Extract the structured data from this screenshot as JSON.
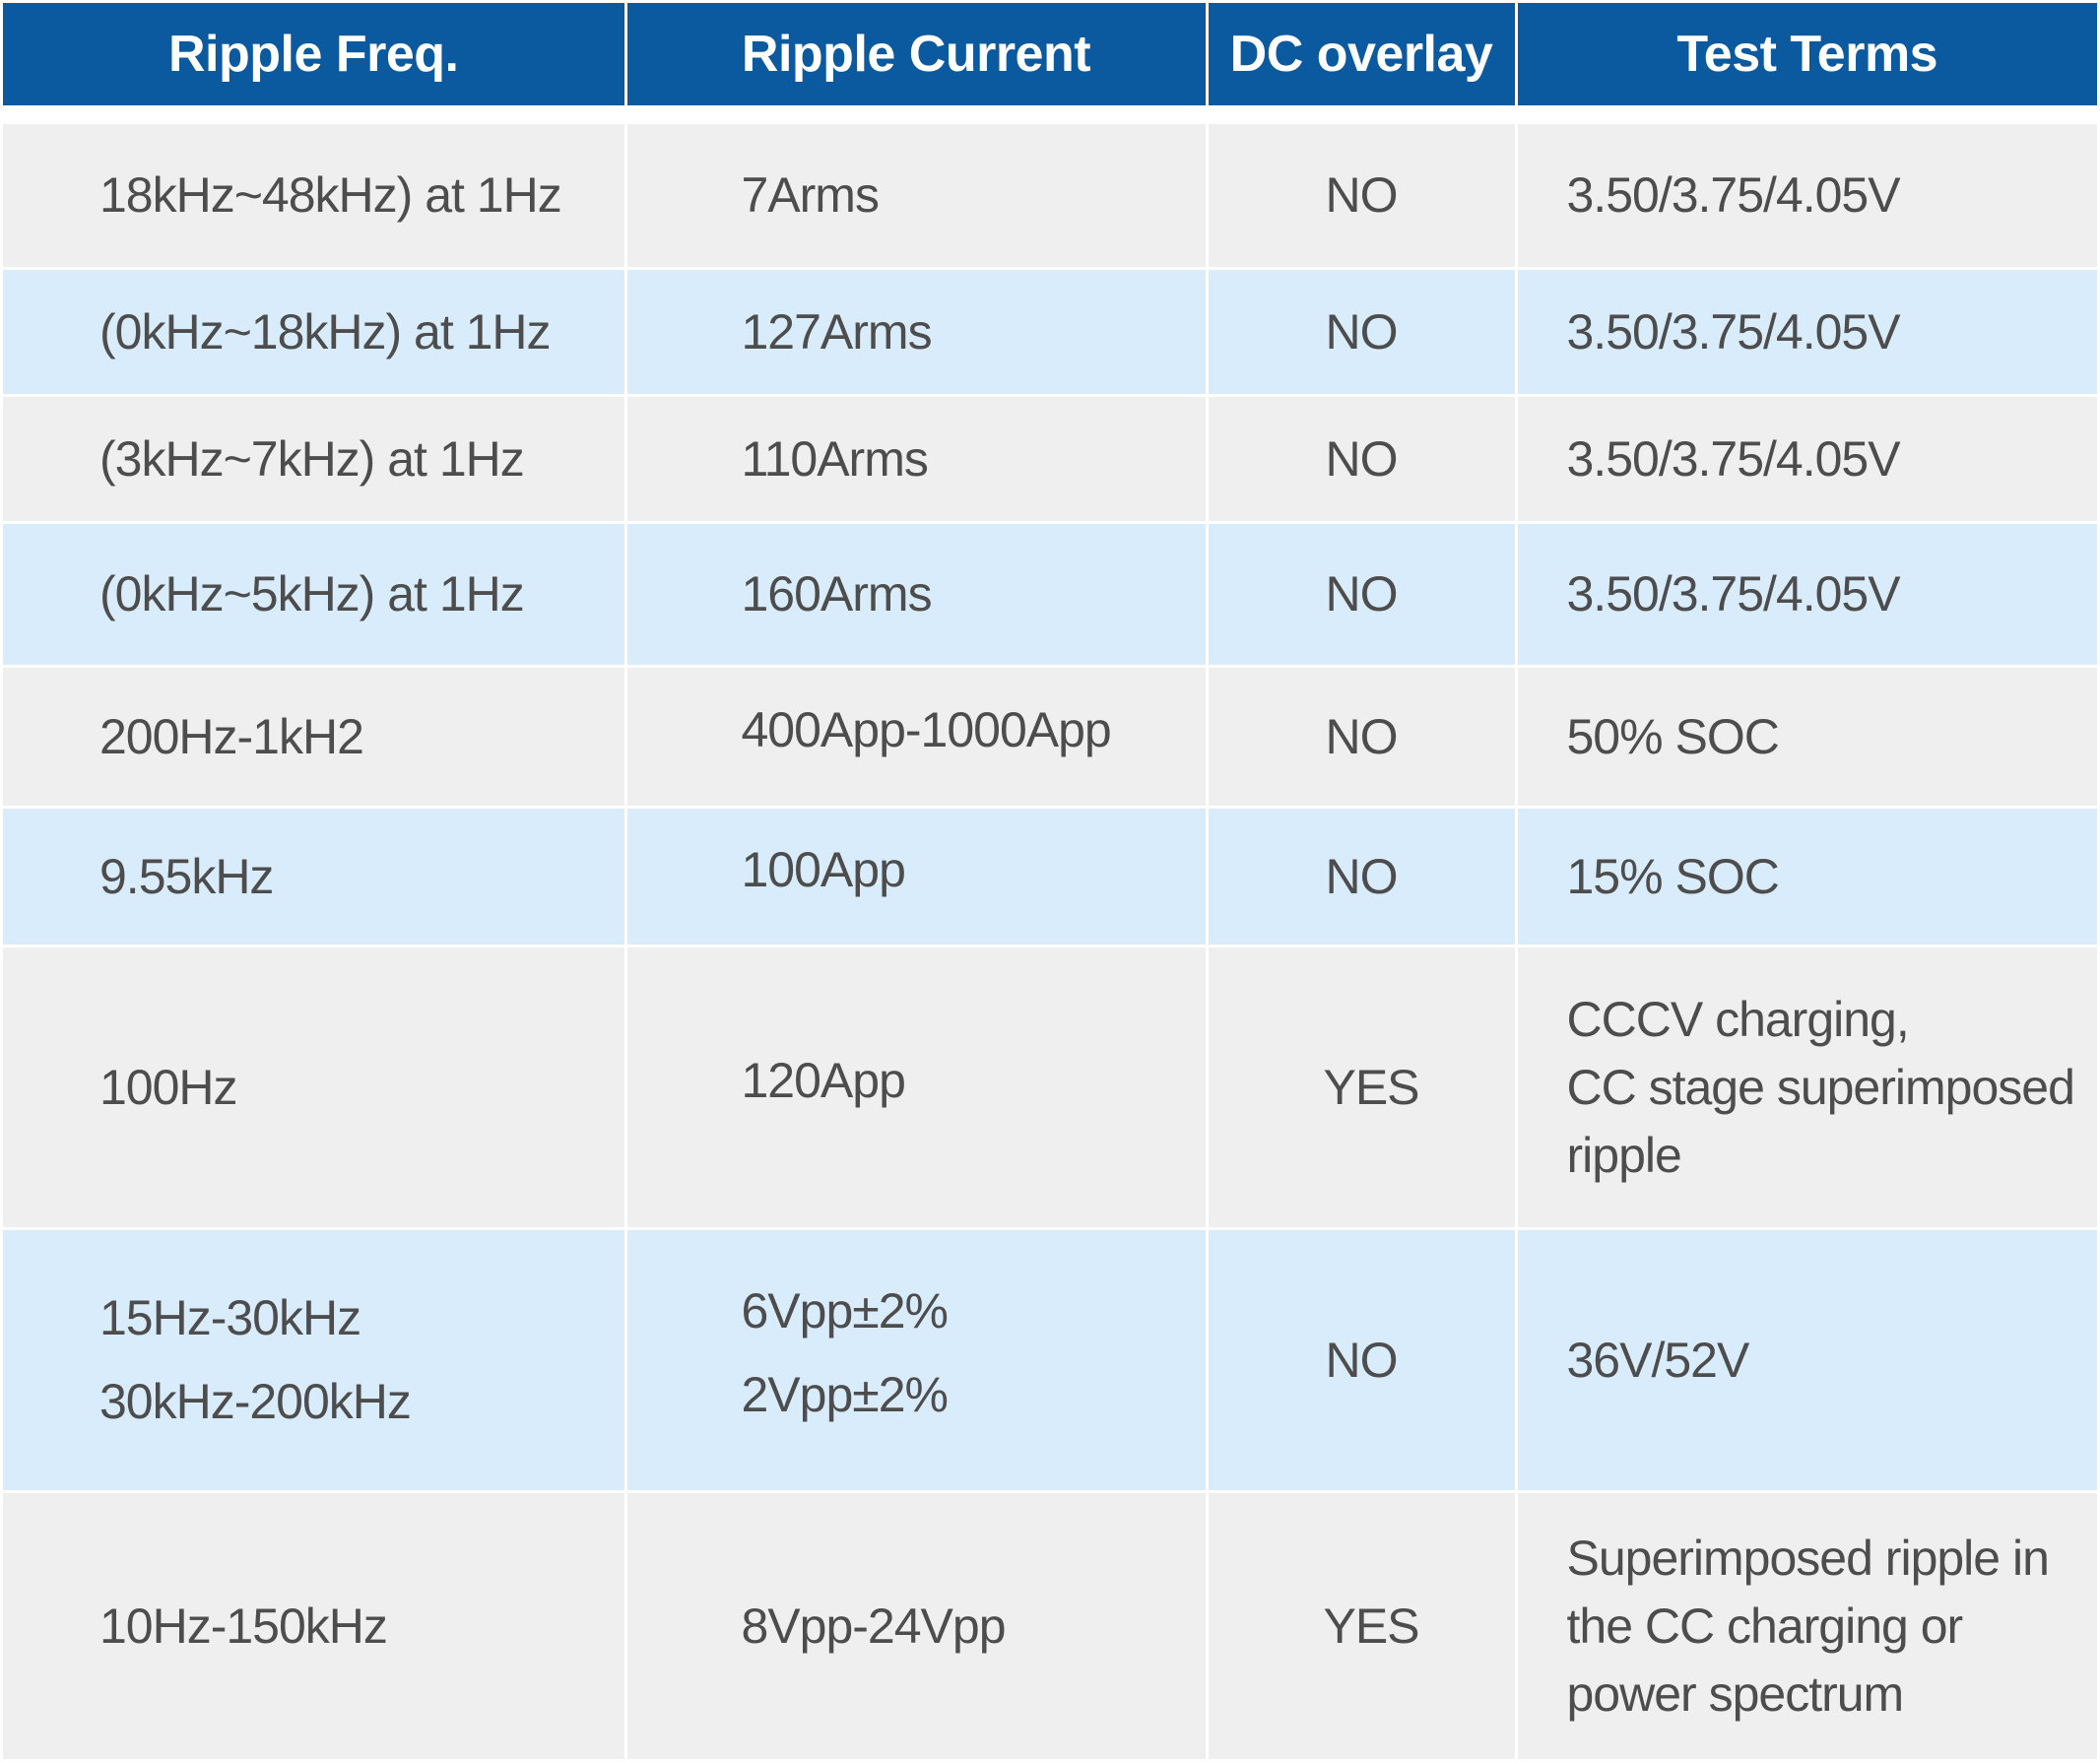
{
  "table": {
    "headers": [
      "Ripple Freq.",
      "Ripple Current",
      "DC overlay",
      "Test Terms"
    ],
    "rows": [
      {
        "freq": [
          "18kHz~48kHz) at 1Hz"
        ],
        "current": [
          "7Arms"
        ],
        "dc": "NO",
        "terms": [
          "3.50/3.75/4.05V"
        ]
      },
      {
        "freq": [
          "(0kHz~18kHz) at 1Hz"
        ],
        "current": [
          "127Arms"
        ],
        "dc": "NO",
        "terms": [
          "3.50/3.75/4.05V"
        ]
      },
      {
        "freq": [
          "(3kHz~7kHz) at 1Hz"
        ],
        "current": [
          "110Arms"
        ],
        "dc": "NO",
        "terms": [
          "3.50/3.75/4.05V"
        ]
      },
      {
        "freq": [
          "(0kHz~5kHz) at 1Hz"
        ],
        "current": [
          "160Arms"
        ],
        "dc": "NO",
        "terms": [
          "3.50/3.75/4.05V"
        ]
      },
      {
        "freq": [
          "200Hz-1kH2"
        ],
        "current": [
          "400App-1000App"
        ],
        "dc": "NO",
        "terms": [
          "50% SOC"
        ]
      },
      {
        "freq": [
          "9.55kHz"
        ],
        "current": [
          "100App"
        ],
        "dc": "NO",
        "terms": [
          "15% SOC"
        ]
      },
      {
        "freq": [
          "100Hz"
        ],
        "current": [
          "120App"
        ],
        "dc": "YES",
        "terms": [
          "CCCV charging,",
          "CC stage superimposed",
          "ripple"
        ]
      },
      {
        "freq": [
          "15Hz-30kHz",
          "30kHz-200kHz"
        ],
        "current": [
          "6Vpp±2%",
          "2Vpp±2%"
        ],
        "dc": "NO",
        "terms": [
          "36V/52V"
        ]
      },
      {
        "freq": [
          "10Hz-150kHz"
        ],
        "current": [
          "8Vpp-24Vpp"
        ],
        "dc": "YES",
        "terms": [
          "Superimposed ripple in",
          "the CC charging or",
          "power spectrum"
        ]
      }
    ]
  },
  "colors": {
    "header_bg": "#0b5aa0",
    "header_text": "#ffffff",
    "row_gray": "#efefef",
    "row_blue": "#d9ecfb",
    "body_text": "#4d4d4d"
  }
}
